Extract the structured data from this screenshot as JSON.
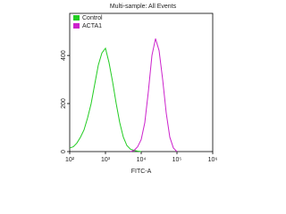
{
  "chart_data": {
    "type": "line",
    "title": "Multi-sample: All Events",
    "xlabel": "FITC-A",
    "log_x": true,
    "legend": "upper-left",
    "xlim": [
      100,
      1000000
    ],
    "xticks": [
      {
        "value": 100,
        "label": "10²"
      },
      {
        "value": 1000,
        "label": "10³"
      },
      {
        "value": 10000,
        "label": "10⁴"
      },
      {
        "value": 100000,
        "label": "10⁵"
      },
      {
        "value": 1000000,
        "label": "10⁶"
      }
    ],
    "ylim": [
      0,
      575
    ],
    "yticks": [
      0,
      200,
      400
    ],
    "series": [
      {
        "name": "Control",
        "color": "#22cc22",
        "x": [
          100,
          126,
          158,
          200,
          251,
          316,
          398,
          501,
          631,
          794,
          1000,
          1259,
          1585,
          1995,
          2512,
          3162,
          3981,
          5012,
          6310,
          7943,
          10000
        ],
        "values": [
          15,
          20,
          35,
          60,
          90,
          140,
          200,
          280,
          360,
          410,
          430,
          370,
          290,
          200,
          120,
          60,
          25,
          10,
          5,
          2,
          0
        ]
      },
      {
        "name": "ACTA1",
        "color": "#cc22cc",
        "x": [
          5012,
          6310,
          7943,
          10000,
          12589,
          15849,
          19953,
          25119,
          31623,
          39811,
          50119,
          63096,
          79433,
          100000
        ],
        "values": [
          0,
          5,
          20,
          50,
          120,
          250,
          400,
          470,
          420,
          300,
          160,
          60,
          15,
          0
        ]
      }
    ]
  }
}
